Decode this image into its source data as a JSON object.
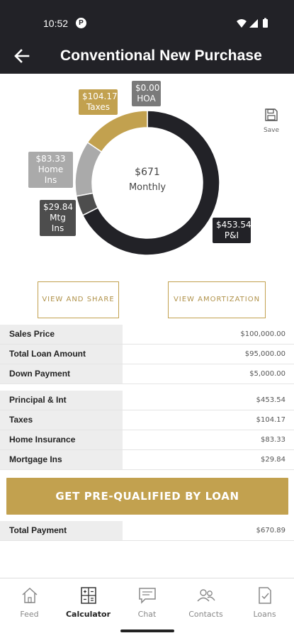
{
  "status_bar": {
    "time": "10:52",
    "badge": "P"
  },
  "app_bar": {
    "title": "Conventional New Purchase"
  },
  "chart_data": {
    "type": "pie",
    "center_value": "$671",
    "center_label": "Monthly",
    "slices": [
      {
        "name": "P&I",
        "display": "$453.54",
        "value": 453.54,
        "color": "#222227"
      },
      {
        "name": "Mtg Ins",
        "display": "$29.84",
        "value": 29.84,
        "color": "#4d4d4d"
      },
      {
        "name": "Home Ins",
        "display": "$83.33",
        "value": 83.33,
        "color": "#aaaaaa"
      },
      {
        "name": "Taxes",
        "display": "$104.17",
        "value": 104.17,
        "color": "#c2a14f"
      },
      {
        "name": "HOA",
        "display": "$0.00",
        "value": 0.0,
        "color": "#7a7a7a"
      }
    ]
  },
  "save": {
    "label": "Save"
  },
  "buttons": {
    "view_share": "VIEW AND SHARE",
    "view_amort": "VIEW AMORTIZATION",
    "cta": "GET PRE-QUALIFIED BY LOAN"
  },
  "loan_rows": [
    {
      "label": "Sales Price",
      "value": "$100,000.00"
    },
    {
      "label": "Total Loan Amount",
      "value": "$95,000.00"
    },
    {
      "label": "Down Payment",
      "value": "$5,000.00"
    }
  ],
  "payment_rows": [
    {
      "label": "Principal & Int",
      "value": "$453.54"
    },
    {
      "label": "Taxes",
      "value": "$104.17"
    },
    {
      "label": "Home Insurance",
      "value": "$83.33"
    },
    {
      "label": "Mortgage Ins",
      "value": "$29.84"
    }
  ],
  "total_row": {
    "label": "Total Payment",
    "value": "$670.89"
  },
  "nav": [
    {
      "label": "Feed",
      "icon": "home-icon"
    },
    {
      "label": "Calculator",
      "icon": "calculator-icon"
    },
    {
      "label": "Chat",
      "icon": "chat-icon"
    },
    {
      "label": "Contacts",
      "icon": "contacts-icon"
    },
    {
      "label": "Loans",
      "icon": "loans-icon"
    }
  ],
  "colors": {
    "dark": "#222227",
    "gold": "#c2a14f"
  }
}
